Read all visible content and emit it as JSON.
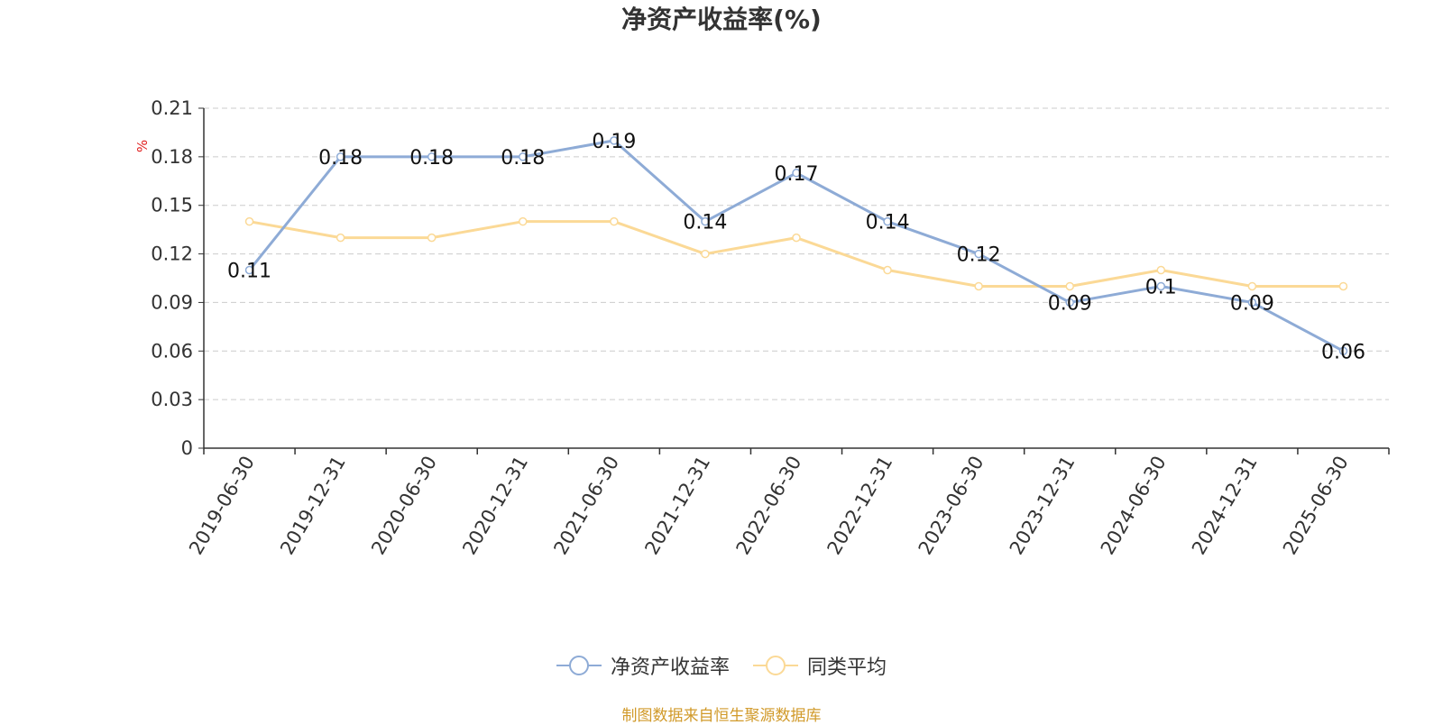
{
  "chart_data": {
    "type": "line",
    "title": "净资产收益率(%)",
    "ylabel": "%",
    "xlabel": "",
    "categories": [
      "2019-06-30",
      "2019-12-31",
      "2020-06-30",
      "2020-12-31",
      "2021-06-30",
      "2021-12-31",
      "2022-06-30",
      "2022-12-31",
      "2023-06-30",
      "2023-12-31",
      "2024-06-30",
      "2024-12-31",
      "2025-06-30"
    ],
    "y_ticks": [
      "0",
      "0.03",
      "0.06",
      "0.09",
      "0.12",
      "0.15",
      "0.18",
      "0.21"
    ],
    "ylim": [
      0,
      0.21
    ],
    "grid": true,
    "legend_position": "bottom",
    "series": [
      {
        "name": "净资产收益率",
        "color": "#8eabd6",
        "show_labels": true,
        "values": [
          0.11,
          0.18,
          0.18,
          0.18,
          0.19,
          0.14,
          0.17,
          0.14,
          0.12,
          0.09,
          0.1,
          0.09,
          0.06
        ],
        "labels": [
          "0.11",
          "0.18",
          "0.18",
          "0.18",
          "0.19",
          "0.14",
          "0.17",
          "0.14",
          "0.12",
          "0.09",
          "0.1",
          "0.09",
          "0.06"
        ]
      },
      {
        "name": "同类平均",
        "color": "#fbd996",
        "show_labels": false,
        "values": [
          0.14,
          0.13,
          0.13,
          0.14,
          0.14,
          0.12,
          0.13,
          0.11,
          0.1,
          0.1,
          0.11,
          0.1,
          0.1
        ]
      }
    ]
  },
  "legend": {
    "items": [
      {
        "label": "净资产收益率",
        "color": "#8eabd6"
      },
      {
        "label": "同类平均",
        "color": "#fbd996"
      }
    ]
  },
  "source_note": "制图数据来自恒生聚源数据库",
  "colors": {
    "axis": "#333333",
    "grid": "#cccccc",
    "unit_label": "#e02020",
    "source_note": "#d19a2a"
  }
}
